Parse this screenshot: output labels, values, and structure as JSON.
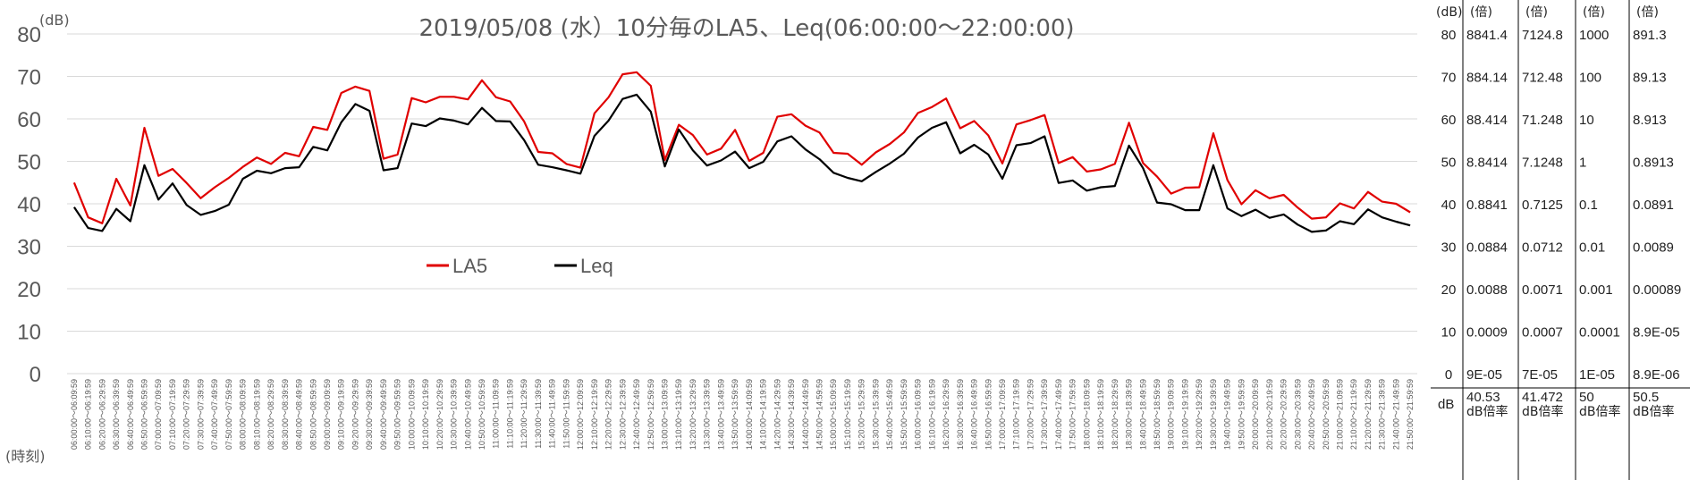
{
  "colors": {
    "la5": "#e00000",
    "leq": "#000000",
    "grid": "#d9d9d9",
    "text": "#595959"
  },
  "chart_data": {
    "type": "line",
    "title": "2019/05/08 (水）10分毎のLA5、Leq(06:00:00～22:00:00)",
    "ylabel": "(dB)",
    "xlabel": "(時刻)",
    "ylim": [
      0,
      80
    ],
    "yticks": [
      0,
      10,
      20,
      30,
      40,
      50,
      60,
      70,
      80
    ],
    "grid": true,
    "legend_position": "center-left",
    "x": [
      "06:00:00～06:09:59",
      "06:10:00～06:19:59",
      "06:20:00～06:29:59",
      "06:30:00～06:39:59",
      "06:40:00～06:49:59",
      "06:50:00～06:59:59",
      "07:00:00～07:09:59",
      "07:10:00～07:19:59",
      "07:20:00～07:29:59",
      "07:30:00～07:39:59",
      "07:40:00～07:49:59",
      "07:50:00～07:59:59",
      "08:00:00～08:09:59",
      "08:10:00～08:19:59",
      "08:20:00～08:29:59",
      "08:30:00～08:39:59",
      "08:40:00～08:49:59",
      "08:50:00～08:59:59",
      "09:00:00～09:09:59",
      "09:10:00～09:19:59",
      "09:20:00～09:29:59",
      "09:30:00～09:39:59",
      "09:40:00～09:49:59",
      "09:50:00～09:59:59",
      "10:00:00～10:09:59",
      "10:10:00～10:19:59",
      "10:20:00～10:29:59",
      "10:30:00～10:39:59",
      "10:40:00～10:49:59",
      "10:50:00～10:59:59",
      "11:00:00～11:09:59",
      "11:10:00～11:19:59",
      "11:20:00～11:29:59",
      "11:30:00～11:39:59",
      "11:40:00～11:49:59",
      "11:50:00～11:59:59",
      "12:00:00～12:09:59",
      "12:10:00～12:19:59",
      "12:20:00～12:29:59",
      "12:30:00～12:39:59",
      "12:40:00～12:49:59",
      "12:50:00～12:59:59",
      "13:00:00～13:09:59",
      "13:10:00～13:19:59",
      "13:20:00～13:29:59",
      "13:30:00～13:39:59",
      "13:40:00～13:49:59",
      "13:50:00～13:59:59",
      "14:00:00～14:09:59",
      "14:10:00～14:19:59",
      "14:20:00～14:29:59",
      "14:30:00～14:39:59",
      "14:40:00～14:49:59",
      "14:50:00～14:59:59",
      "15:00:00～15:09:59",
      "15:10:00～15:19:59",
      "15:20:00～15:29:59",
      "15:30:00～15:39:59",
      "15:40:00～15:49:59",
      "15:50:00～15:59:59",
      "16:00:00～16:09:59",
      "16:10:00～16:19:59",
      "16:20:00～16:29:59",
      "16:30:00～16:39:59",
      "16:40:00～16:49:59",
      "16:50:00～16:59:59",
      "17:00:00～17:09:59",
      "17:10:00～17:19:59",
      "17:20:00～17:29:59",
      "17:30:00～17:39:59",
      "17:40:00～17:49:59",
      "17:50:00～17:59:59",
      "18:00:00～18:09:59",
      "18:10:00～18:19:59",
      "18:20:00～18:29:59",
      "18:30:00～18:39:59",
      "18:40:00～18:49:59",
      "18:50:00～18:59:59",
      "19:00:00～19:09:59",
      "19:10:00～19:19:59",
      "19:20:00～19:29:59",
      "19:30:00～19:39:59",
      "19:40:00～19:49:59",
      "19:50:00～19:59:59",
      "20:00:00～20:09:59",
      "20:10:00～20:19:59",
      "20:20:00～20:29:59",
      "20:30:00～20:39:59",
      "20:40:00～20:49:59",
      "20:50:00～20:59:59",
      "21:00:00～21:09:59",
      "21:10:00～21:19:59",
      "21:20:00～21:29:59",
      "21:30:00～21:39:59",
      "21:40:00～21:49:59",
      "21:50:00～21:59:59"
    ],
    "series": [
      {
        "name": "LA5",
        "color": "#e00000",
        "values": [
          45.0,
          36.8,
          35.4,
          45.9,
          39.6,
          57.9,
          46.6,
          48.2,
          44.9,
          41.3,
          43.9,
          46.1,
          48.7,
          50.9,
          49.4,
          52.0,
          51.2,
          58.1,
          57.4,
          66.1,
          67.6,
          66.6,
          50.6,
          51.6,
          64.9,
          63.9,
          65.2,
          65.2,
          64.6,
          69.1,
          65.1,
          64.1,
          59.4,
          52.2,
          51.9,
          49.4,
          48.5,
          61.3,
          65.1,
          70.5,
          71.0,
          67.8,
          50.3,
          58.6,
          56.2,
          51.6,
          53.0,
          57.4,
          50.1,
          52.0,
          60.5,
          61.1,
          58.4,
          56.8,
          52.0,
          51.8,
          49.2,
          52.1,
          54.1,
          56.8,
          61.4,
          62.8,
          64.8,
          57.8,
          59.5,
          56.1,
          49.5,
          58.7,
          59.7,
          60.9,
          49.6,
          51.0,
          47.6,
          48.1,
          49.4,
          59.1,
          49.6,
          46.4,
          42.4,
          43.8,
          43.9,
          56.6,
          45.6,
          39.9,
          43.2,
          41.3,
          42.1,
          39.1,
          36.5,
          36.8,
          40.1,
          38.9,
          42.8,
          40.5,
          40.0,
          38.0
        ]
      },
      {
        "name": "Leq",
        "color": "#000000",
        "values": [
          39.2,
          34.3,
          33.6,
          38.8,
          35.9,
          49.1,
          41.0,
          44.8,
          39.7,
          37.4,
          38.3,
          39.8,
          45.9,
          47.8,
          47.2,
          48.4,
          48.6,
          53.4,
          52.6,
          59.2,
          63.5,
          61.9,
          47.9,
          48.4,
          58.9,
          58.3,
          60.1,
          59.6,
          58.7,
          62.6,
          59.5,
          59.4,
          55.0,
          49.2,
          48.6,
          47.9,
          47.1,
          56.0,
          59.6,
          64.7,
          65.7,
          61.7,
          48.8,
          57.5,
          52.6,
          49.0,
          50.2,
          52.3,
          48.4,
          49.9,
          54.7,
          55.9,
          52.8,
          50.5,
          47.3,
          46.1,
          45.3,
          47.5,
          49.5,
          51.8,
          55.6,
          57.9,
          59.2,
          51.9,
          53.9,
          51.6,
          45.9,
          53.8,
          54.3,
          55.9,
          44.9,
          45.5,
          43.1,
          43.9,
          44.2,
          53.7,
          48.4,
          40.3,
          39.9,
          38.5,
          38.5,
          49.1,
          38.9,
          37.1,
          38.6,
          36.7,
          37.5,
          35.1,
          33.4,
          33.7,
          35.9,
          35.2,
          38.7,
          36.8,
          35.8,
          34.9
        ]
      }
    ],
    "right_axis": {
      "unit": "(dB)",
      "ticks": [
        "80",
        "70",
        "60",
        "50",
        "40",
        "30",
        "20",
        "10",
        "0"
      ]
    },
    "ratio_table": {
      "columns": [
        {
          "header": "(倍)",
          "values": [
            "8841.4",
            "884.14",
            "88.414",
            "8.8414",
            "0.8841",
            "0.0884",
            "0.0088",
            "0.0009",
            "9E-05"
          ],
          "db": "40.53",
          "label": "dB倍率"
        },
        {
          "header": "(倍)",
          "values": [
            "7124.8",
            "712.48",
            "71.248",
            "7.1248",
            "0.7125",
            "0.0712",
            "0.0071",
            "0.0007",
            "7E-05"
          ],
          "db": "41.472",
          "label": "dB倍率"
        },
        {
          "header": "(倍)",
          "values": [
            "1000",
            "100",
            "10",
            "1",
            "0.1",
            "0.01",
            "0.001",
            "0.0001",
            "1E-05"
          ],
          "db": "50",
          "label": "dB倍率"
        },
        {
          "header": "(倍)",
          "values": [
            "891.3",
            "89.13",
            "8.913",
            "0.8913",
            "0.0891",
            "0.0089",
            "0.00089",
            "8.9E-05",
            "8.9E-06"
          ],
          "db": "50.5",
          "label": "dB倍率"
        }
      ],
      "footer_unit": "dB"
    }
  }
}
